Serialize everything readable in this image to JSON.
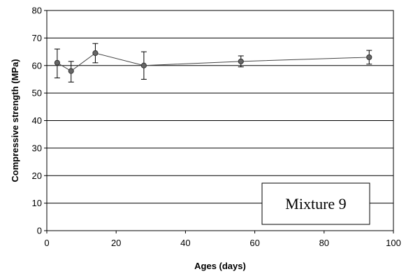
{
  "chart_data": {
    "type": "line",
    "title": "",
    "xlabel": "Ages (days)",
    "ylabel": "Compressive strength (MPa)",
    "xlim": [
      0,
      100
    ],
    "ylim": [
      0,
      80
    ],
    "x_ticks": [
      "0",
      "20",
      "40",
      "60",
      "80",
      "100"
    ],
    "y_ticks": [
      "0",
      "10",
      "20",
      "30",
      "40",
      "50",
      "60",
      "70",
      "80"
    ],
    "grid": "horizontal",
    "annotation": "Mixture 9",
    "series": [
      {
        "x": [
          3,
          7,
          14,
          28,
          56,
          93
        ],
        "y": [
          61,
          58,
          64.5,
          60,
          61.5,
          63
        ],
        "error_low": [
          5.5,
          4,
          3.5,
          5,
          2,
          2.5
        ],
        "error_high": [
          5,
          3.5,
          3.5,
          5,
          2,
          2.5
        ],
        "color": "#444444",
        "marker": "circle"
      }
    ]
  }
}
